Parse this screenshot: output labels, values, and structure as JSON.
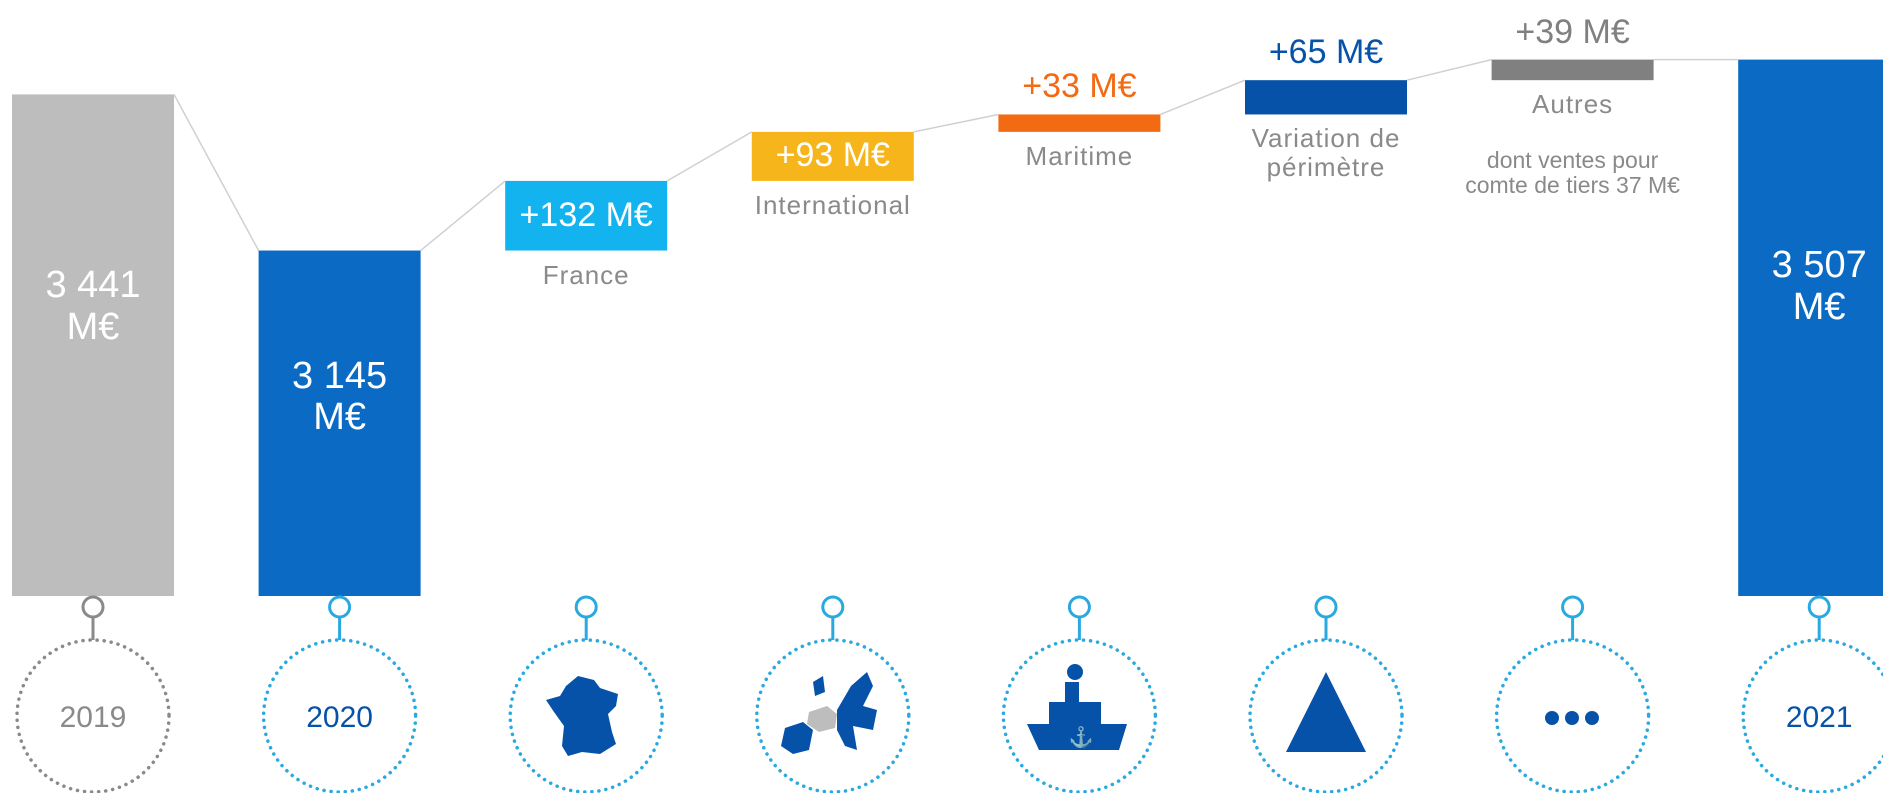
{
  "chart_data": {
    "type": "waterfall",
    "categories": [
      "2019",
      "2020",
      "France",
      "International",
      "Maritime",
      "Variation de périmètre",
      "Autres",
      "2021"
    ],
    "values": [
      3441,
      3145,
      132,
      93,
      33,
      65,
      39,
      3507
    ],
    "value_labels": [
      "3 441 M€",
      "3 145 M€",
      "+132 M€",
      "+93 M€",
      "+33 M€",
      "+65 M€",
      "+39 M€",
      "3 507 M€"
    ],
    "totals": [
      true,
      true,
      false,
      false,
      false,
      false,
      false,
      true
    ],
    "colors": [
      "#bdbdbd",
      "#0b6bc4",
      "#12b3ef",
      "#f5b51b",
      "#f26a12",
      "#0652a8",
      "#808080",
      "#0b6bc4"
    ],
    "ylim": [
      2490,
      3620
    ],
    "annotation": "dont ventes pour comte de tiers 37 M€"
  }
}
